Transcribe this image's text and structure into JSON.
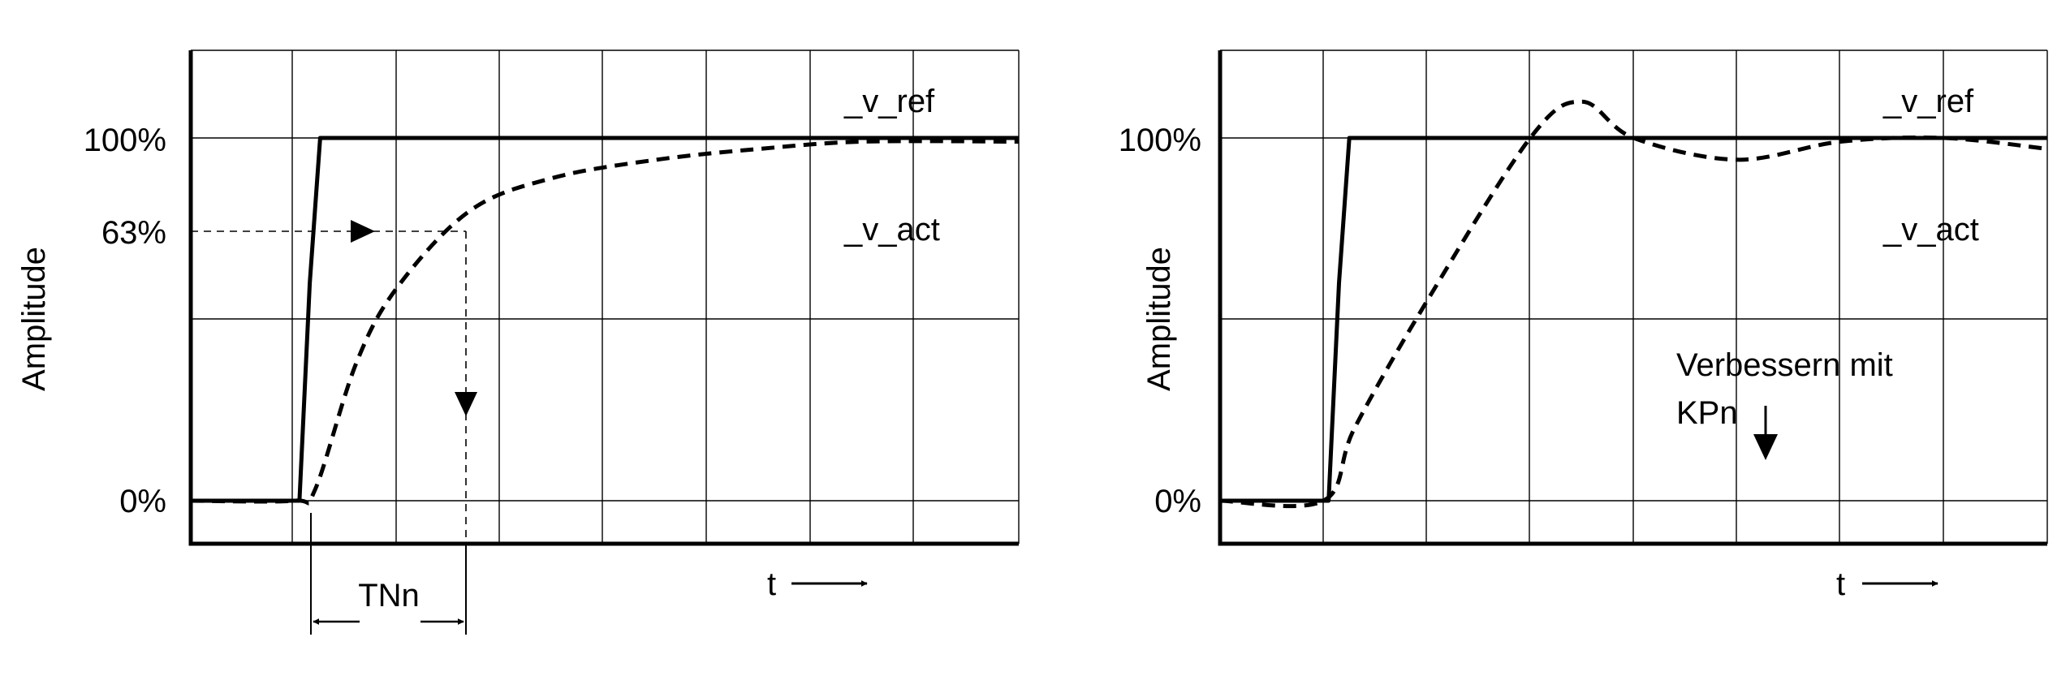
{
  "chart_data": [
    {
      "type": "line",
      "ylabel": "Amplitude",
      "y_tick_labels": [
        "100%",
        "63%",
        "0%"
      ],
      "x_axis_label": "t",
      "y_range_percent": [
        -12,
        125
      ],
      "x_range": [
        0,
        8
      ],
      "series": [
        {
          "name": "_v_ref",
          "style": "solid",
          "x": [
            0,
            1.05,
            1.15,
            1.25,
            8
          ],
          "y": [
            0,
            0,
            60,
            100,
            100
          ]
        },
        {
          "name": "_v_act",
          "style": "dashed",
          "x": [
            0,
            1.0,
            1.2,
            1.6,
            2.0,
            2.7,
            3.5,
            4.5,
            5.5,
            6.5,
            8
          ],
          "y": [
            0,
            0,
            3,
            38,
            59,
            80,
            89,
            94,
            97,
            99,
            99
          ]
        }
      ],
      "annotations": {
        "ref_label": "_v_ref",
        "act_label": "_v_act",
        "time_constant_label": "TNn",
        "marker_level_percent": 63
      }
    },
    {
      "type": "line",
      "ylabel": "Amplitude",
      "y_tick_labels": [
        "100%",
        "0%"
      ],
      "x_axis_label": "t",
      "y_range_percent": [
        -12,
        125
      ],
      "x_range": [
        0,
        8
      ],
      "series": [
        {
          "name": "_v_ref",
          "style": "solid",
          "x": [
            0,
            1.05,
            1.15,
            1.25,
            8
          ],
          "y": [
            0,
            0,
            60,
            100,
            100
          ]
        },
        {
          "name": "_v_act",
          "style": "dashed",
          "x": [
            0,
            1.0,
            1.3,
            2.0,
            3.0,
            3.5,
            4.0,
            5.0,
            6.0,
            7.0,
            8
          ],
          "y": [
            0,
            0,
            20,
            55,
            100,
            110,
            100,
            94,
            99,
            100,
            97
          ]
        }
      ],
      "annotations": {
        "ref_label": "_v_ref",
        "act_label": "_v_act",
        "hint_line1": "Verbessern mit",
        "hint_line2": "KPn"
      }
    }
  ]
}
